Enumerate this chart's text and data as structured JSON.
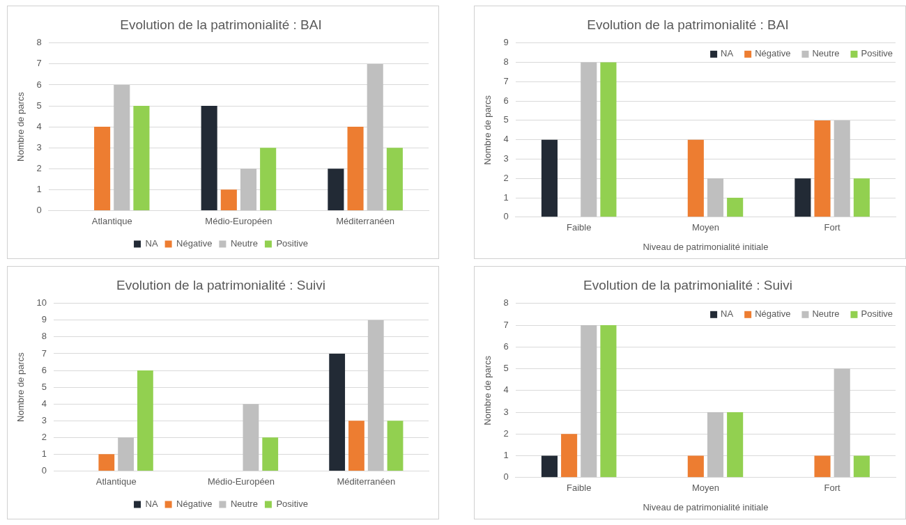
{
  "chart_data": [
    {
      "type": "bar",
      "title": "Evolution de la patrimonialité : BAI",
      "ylabel": "Nombre de parcs",
      "categories": [
        "Atlantique",
        "Médio-Européen",
        "Méditerranéen"
      ],
      "ylim": [
        0,
        8
      ],
      "yticks": [
        0,
        1,
        2,
        3,
        4,
        5,
        6,
        7,
        8
      ],
      "grid": "y",
      "legend": "bottom",
      "series": [
        {
          "name": "NA",
          "color": "#222a35",
          "values": [
            0,
            5,
            2
          ]
        },
        {
          "name": "Négative",
          "color": "#ed7d31",
          "values": [
            4,
            1,
            4
          ]
        },
        {
          "name": "Neutre",
          "color": "#bfbfbf",
          "values": [
            6,
            2,
            7
          ]
        },
        {
          "name": "Positive",
          "color": "#92d050",
          "values": [
            5,
            3,
            3
          ]
        }
      ]
    },
    {
      "type": "bar",
      "title": "Evolution de la patrimonialité : BAI",
      "ylabel": "Nombre de parcs",
      "xlabel": "Niveau de patrimonialité initiale",
      "categories": [
        "Faible",
        "Moyen",
        "Fort"
      ],
      "ylim": [
        0,
        9
      ],
      "yticks": [
        0,
        1,
        2,
        3,
        4,
        5,
        6,
        7,
        8,
        9
      ],
      "grid": "y",
      "legend": "top right",
      "series": [
        {
          "name": "NA",
          "color": "#222a35",
          "values": [
            4,
            0,
            2
          ]
        },
        {
          "name": "Négative",
          "color": "#ed7d31",
          "values": [
            0,
            4,
            5
          ]
        },
        {
          "name": "Neutre",
          "color": "#bfbfbf",
          "values": [
            8,
            2,
            5
          ]
        },
        {
          "name": "Positive",
          "color": "#92d050",
          "values": [
            8,
            1,
            2
          ]
        }
      ]
    },
    {
      "type": "bar",
      "title": "Evolution de la patrimonialité : Suivi",
      "ylabel": "Nombre de parcs",
      "categories": [
        "Atlantique",
        "Médio-Européen",
        "Méditerranéen"
      ],
      "ylim": [
        0,
        10
      ],
      "yticks": [
        0,
        1,
        2,
        3,
        4,
        5,
        6,
        7,
        8,
        9,
        10
      ],
      "grid": "y",
      "legend": "bottom",
      "series": [
        {
          "name": "NA",
          "color": "#222a35",
          "values": [
            0,
            0,
            7
          ]
        },
        {
          "name": "Négative",
          "color": "#ed7d31",
          "values": [
            1,
            0,
            3
          ]
        },
        {
          "name": "Neutre",
          "color": "#bfbfbf",
          "values": [
            2,
            4,
            9
          ]
        },
        {
          "name": "Positive",
          "color": "#92d050",
          "values": [
            6,
            2,
            3
          ]
        }
      ]
    },
    {
      "type": "bar",
      "title": "Evolution de la patrimonialité : Suivi",
      "ylabel": "Nombre de parcs",
      "xlabel": "Niveau de patrimonialité initiale",
      "categories": [
        "Faible",
        "Moyen",
        "Fort"
      ],
      "ylim": [
        0,
        8
      ],
      "yticks": [
        0,
        1,
        2,
        3,
        4,
        5,
        6,
        7,
        8
      ],
      "grid": "y",
      "legend": "top right",
      "series": [
        {
          "name": "NA",
          "color": "#222a35",
          "values": [
            1,
            0,
            0
          ]
        },
        {
          "name": "Négative",
          "color": "#ed7d31",
          "values": [
            2,
            1,
            1
          ]
        },
        {
          "name": "Neutre",
          "color": "#bfbfbf",
          "values": [
            7,
            3,
            5
          ]
        },
        {
          "name": "Positive",
          "color": "#92d050",
          "values": [
            7,
            3,
            1
          ]
        }
      ]
    }
  ]
}
